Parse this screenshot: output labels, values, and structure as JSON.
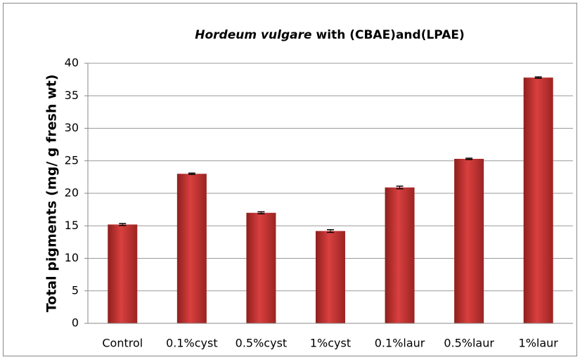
{
  "chart_data": {
    "type": "bar",
    "title": [
      "Hordeum vulgare",
      "with (CBAE)and(LPAE)"
    ],
    "y_label": "Total pigments (mg/ g fresh wt)",
    "categories": [
      "Control",
      "0.1%cyst",
      "0.5%cyst",
      "1%cyst",
      "0.1%laur",
      "0.5%laur",
      "1%laur"
    ],
    "values": [
      15.2,
      23.0,
      17.0,
      14.2,
      20.9,
      25.3,
      37.8
    ],
    "errors": [
      0.15,
      0.1,
      0.15,
      0.2,
      0.2,
      0.1,
      0.1
    ],
    "color": "#d9403f",
    "ylim": [
      0,
      40
    ],
    "yticks": [
      0,
      5,
      10,
      15,
      20,
      25,
      30,
      35,
      40
    ],
    "grid": true
  }
}
